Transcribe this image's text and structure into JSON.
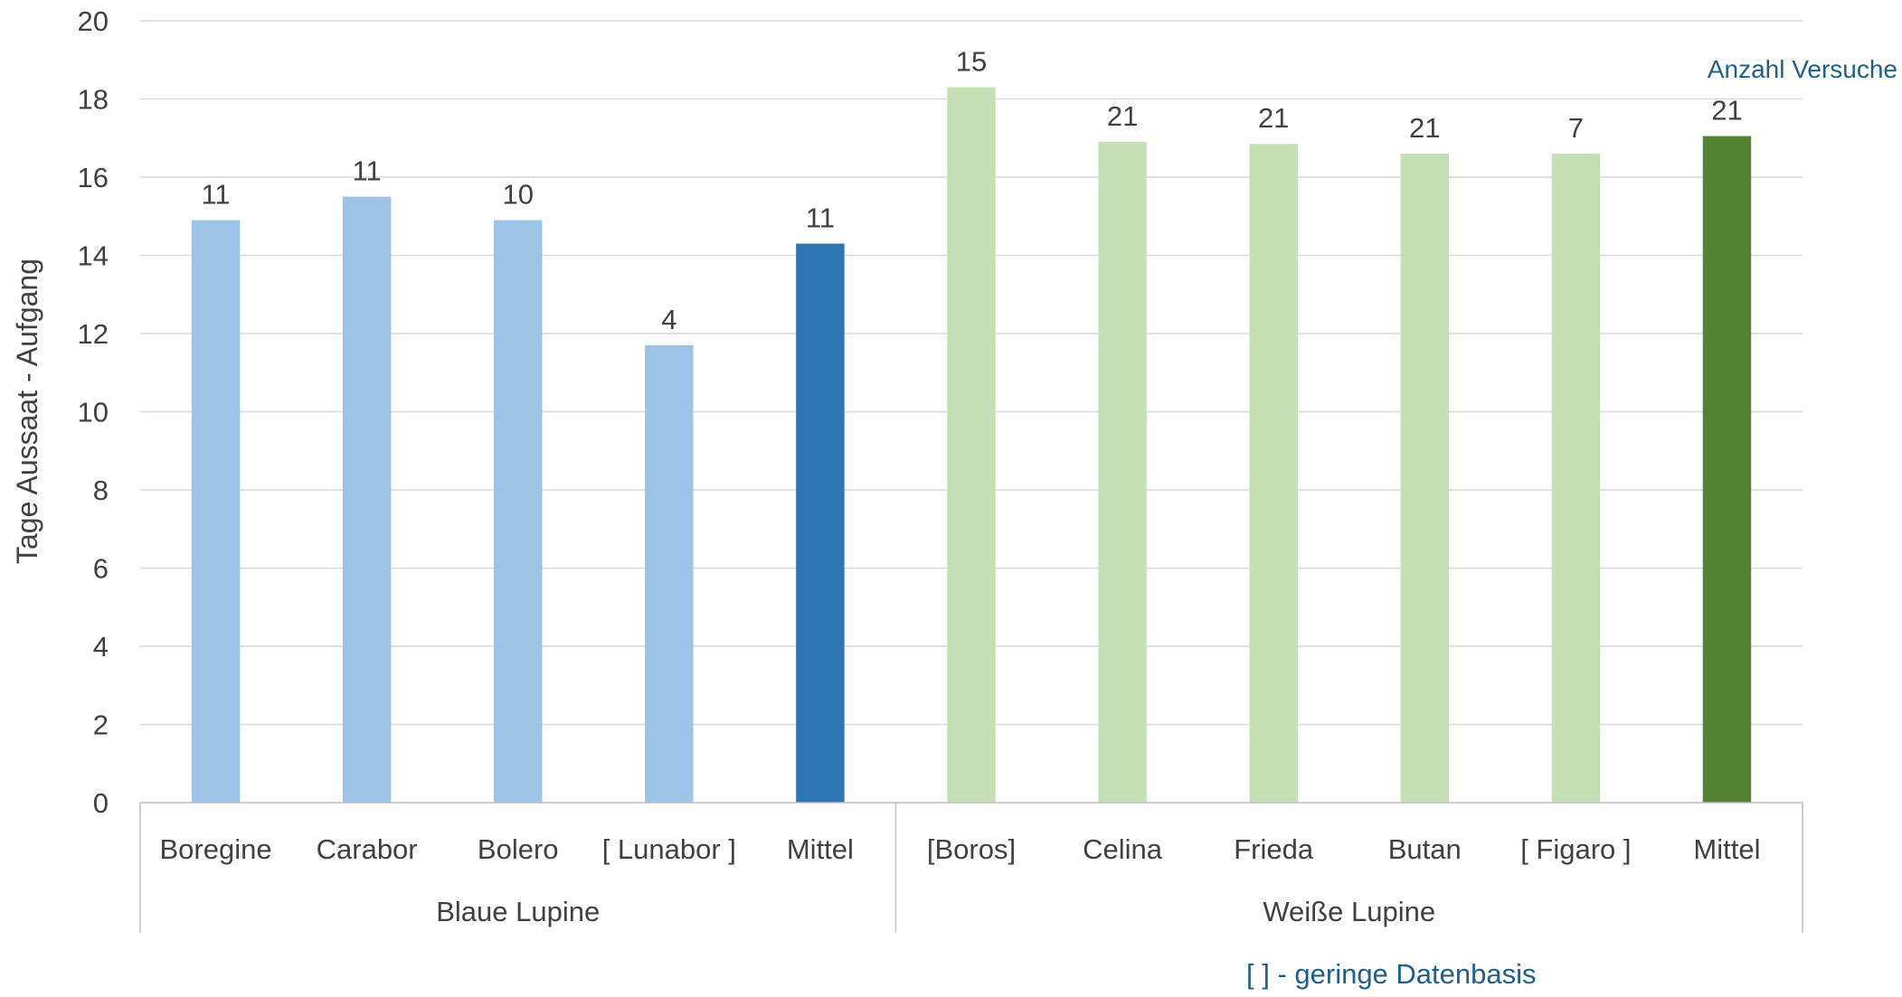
{
  "chart_data": {
    "type": "bar",
    "ylabel": "Tage Aussaat - Aufgang",
    "ylim": [
      0,
      20
    ],
    "yticks": [
      0,
      2,
      4,
      6,
      8,
      10,
      12,
      14,
      16,
      18,
      20
    ],
    "grid": true,
    "groups": [
      {
        "name": "Blaue Lupine",
        "categories": [
          "Boregine",
          "Carabor",
          "Bolero",
          "[ Lunabor ]",
          "Mittel"
        ],
        "values": [
          14.9,
          15.5,
          14.9,
          11.7,
          14.3
        ],
        "counts": [
          "11",
          "11",
          "10",
          "4",
          "11"
        ]
      },
      {
        "name": "Weiße Lupine",
        "categories": [
          "[Boros]",
          "Celina",
          "Frieda",
          "Butan",
          "[ Figaro ]",
          "Mittel"
        ],
        "values": [
          18.3,
          16.9,
          16.85,
          16.6,
          16.6,
          17.05
        ],
        "counts": [
          "15",
          "21",
          "21",
          "21",
          "7",
          "21"
        ]
      }
    ],
    "count_label": "Anzahl Versuche",
    "footnote": "[ ]  - geringe Datenbasis"
  },
  "colors": {
    "blau_sorte": "#9dc3e6",
    "blau_mittel": "#2e75b6",
    "weiss_sorte": "#c5e0b4",
    "weiss_mittel": "#548235",
    "grid": "#d9d9d9",
    "axis": "#bfbfbf",
    "text": "#404040",
    "note": "#1f5f8b"
  }
}
